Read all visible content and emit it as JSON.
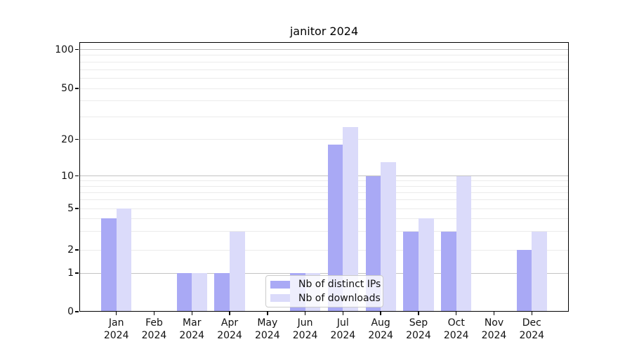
{
  "title": "janitor 2024",
  "legend": {
    "items": [
      {
        "label": "Nb of distinct IPs",
        "color": "#a9a9f5"
      },
      {
        "label": "Nb of downloads",
        "color": "#dbdbfa"
      }
    ]
  },
  "chart_data": {
    "type": "bar",
    "title": "janitor 2024",
    "categories": [
      "Jan",
      "Feb",
      "Mar",
      "Apr",
      "May",
      "Jun",
      "Jul",
      "Aug",
      "Sep",
      "Oct",
      "Nov",
      "Dec"
    ],
    "category_year": "2024",
    "series": [
      {
        "name": "Nb of distinct IPs",
        "color": "#a9a9f5",
        "values": [
          4,
          0,
          1,
          1,
          0,
          1,
          18,
          10,
          3,
          3,
          0,
          2
        ]
      },
      {
        "name": "Nb of downloads",
        "color": "#dbdbfa",
        "values": [
          5,
          0,
          1,
          3,
          0,
          1,
          25,
          13,
          4,
          10,
          0,
          3
        ]
      }
    ],
    "xlabel": "",
    "ylabel": "",
    "yscale": "symlog",
    "y_major_ticks": [
      0,
      1,
      2,
      5,
      10,
      20,
      50,
      100
    ],
    "y_minor_gridlines": [
      3,
      4,
      6,
      7,
      8,
      9,
      30,
      40,
      60,
      70,
      80,
      90
    ],
    "y_decade_gridlines": [
      1,
      10,
      100
    ],
    "ylim": [
      0,
      110
    ],
    "grid": true,
    "legend_position": "lower center"
  }
}
